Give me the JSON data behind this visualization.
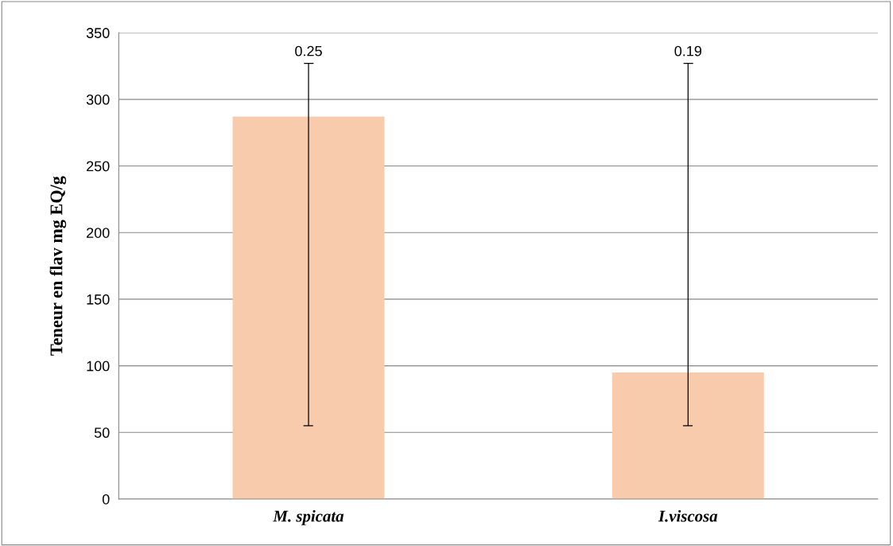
{
  "chart_data": {
    "type": "bar",
    "ylabel": "Teneur en flav mg EQ/g",
    "categories": [
      "M. spicata",
      "I.viscosa"
    ],
    "values": [
      287,
      95
    ],
    "errors": [
      [
        55,
        327
      ],
      [
        55,
        327
      ]
    ],
    "color": "#f8cbad",
    "ylim": [
      0,
      350
    ],
    "yticks": [
      0,
      50,
      100,
      150,
      200,
      250,
      300,
      350
    ],
    "grid": "y",
    "annotations": [
      "0.25",
      "0.19"
    ]
  }
}
